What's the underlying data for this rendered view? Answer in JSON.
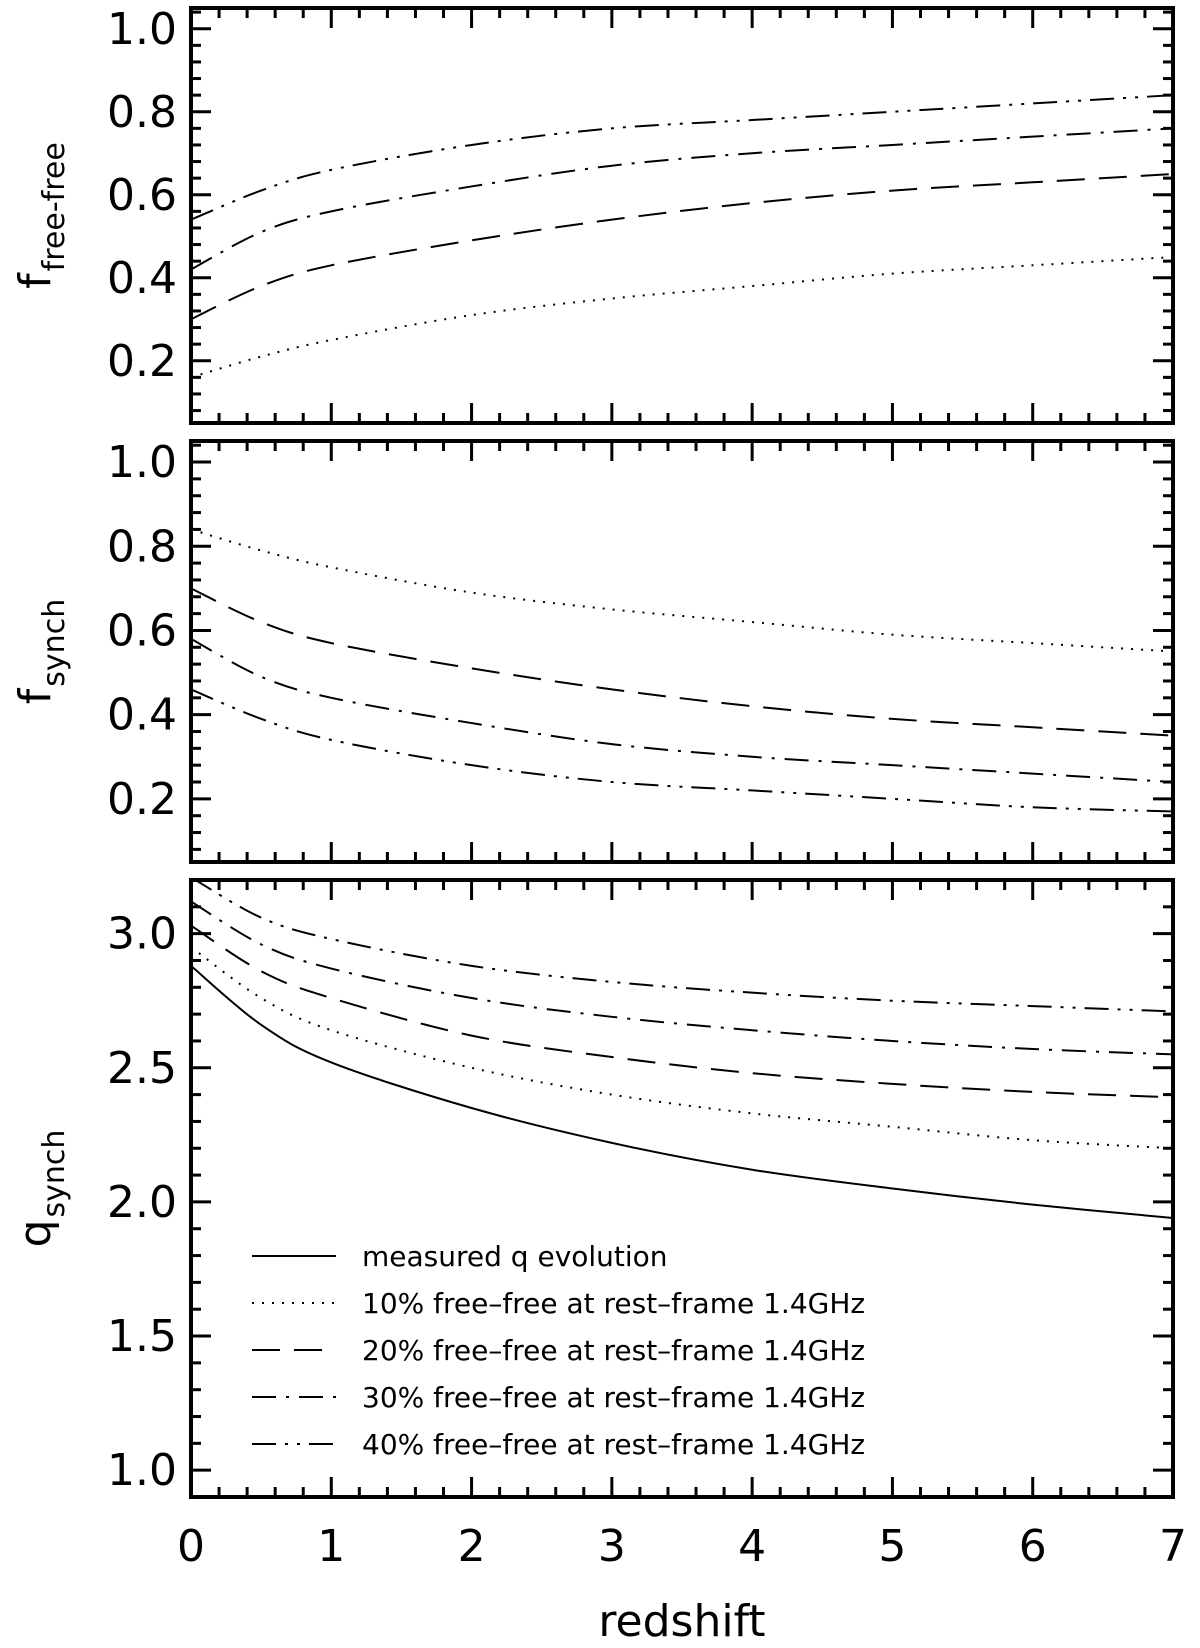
{
  "chart_data": [
    {
      "type": "line",
      "ylabel": "f",
      "ylabel_sub": "free-free",
      "xlabel": "",
      "xlim": [
        0,
        7
      ],
      "ylim": [
        0.05,
        1.05
      ],
      "yticks": [
        "0.2",
        "0.4",
        "0.6",
        "0.8",
        "1.0"
      ],
      "grid": false,
      "series": [
        {
          "style": "dotted",
          "x": [
            0,
            0.5,
            1,
            2,
            3,
            4,
            5,
            6,
            7
          ],
          "values": [
            0.16,
            0.21,
            0.25,
            0.31,
            0.35,
            0.38,
            0.41,
            0.43,
            0.45
          ]
        },
        {
          "style": "dashed",
          "x": [
            0,
            0.5,
            1,
            2,
            3,
            4,
            5,
            6,
            7
          ],
          "values": [
            0.3,
            0.38,
            0.43,
            0.49,
            0.54,
            0.58,
            0.61,
            0.63,
            0.65
          ]
        },
        {
          "style": "dashdot",
          "x": [
            0,
            0.5,
            1,
            2,
            3,
            4,
            5,
            6,
            7
          ],
          "values": [
            0.42,
            0.51,
            0.56,
            0.62,
            0.67,
            0.7,
            0.72,
            0.74,
            0.76
          ]
        },
        {
          "style": "dashdotdot",
          "x": [
            0,
            0.5,
            1,
            2,
            3,
            4,
            5,
            6,
            7
          ],
          "values": [
            0.54,
            0.61,
            0.66,
            0.72,
            0.76,
            0.78,
            0.8,
            0.82,
            0.84
          ]
        }
      ]
    },
    {
      "type": "line",
      "ylabel": "f",
      "ylabel_sub": "synch",
      "xlabel": "",
      "xlim": [
        0,
        7
      ],
      "ylim": [
        0.05,
        1.05
      ],
      "yticks": [
        "0.2",
        "0.4",
        "0.6",
        "0.8",
        "1.0"
      ],
      "grid": false,
      "series": [
        {
          "style": "dotted",
          "x": [
            0,
            0.5,
            1,
            2,
            3,
            4,
            5,
            6,
            7
          ],
          "values": [
            0.84,
            0.79,
            0.75,
            0.69,
            0.65,
            0.62,
            0.59,
            0.57,
            0.55
          ]
        },
        {
          "style": "dashed",
          "x": [
            0,
            0.5,
            1,
            2,
            3,
            4,
            5,
            6,
            7
          ],
          "values": [
            0.7,
            0.62,
            0.57,
            0.51,
            0.46,
            0.42,
            0.39,
            0.37,
            0.35
          ]
        },
        {
          "style": "dashdot",
          "x": [
            0,
            0.5,
            1,
            2,
            3,
            4,
            5,
            6,
            7
          ],
          "values": [
            0.58,
            0.49,
            0.44,
            0.38,
            0.33,
            0.3,
            0.28,
            0.26,
            0.24
          ]
        },
        {
          "style": "dashdotdot",
          "x": [
            0,
            0.5,
            1,
            2,
            3,
            4,
            5,
            6,
            7
          ],
          "values": [
            0.46,
            0.39,
            0.34,
            0.28,
            0.24,
            0.22,
            0.2,
            0.18,
            0.17
          ]
        }
      ]
    },
    {
      "type": "line",
      "ylabel": "q",
      "ylabel_sub": "synch",
      "xlabel": "redshift",
      "xlim": [
        0,
        7
      ],
      "ylim": [
        0.9,
        3.2
      ],
      "xticks": [
        "0",
        "1",
        "2",
        "3",
        "4",
        "5",
        "6",
        "7"
      ],
      "yticks": [
        "1.0",
        "1.5",
        "2.0",
        "2.5",
        "3.0"
      ],
      "grid": false,
      "legend_position": "bottom-left",
      "series": [
        {
          "name": "measured q evolution",
          "style": "solid",
          "x": [
            0,
            0.5,
            1,
            2,
            3,
            4,
            5,
            6,
            7
          ],
          "values": [
            2.88,
            2.66,
            2.52,
            2.35,
            2.22,
            2.12,
            2.05,
            1.99,
            1.94
          ]
        },
        {
          "name": "10% free–free at rest–frame 1.4GHz",
          "style": "dotted",
          "x": [
            0,
            0.5,
            1,
            2,
            3,
            4,
            5,
            6,
            7
          ],
          "values": [
            2.95,
            2.76,
            2.64,
            2.5,
            2.4,
            2.33,
            2.28,
            2.23,
            2.2
          ]
        },
        {
          "name": "20% free–free at rest–frame 1.4GHz",
          "style": "dashed",
          "x": [
            0,
            0.5,
            1,
            2,
            3,
            4,
            5,
            6,
            7
          ],
          "values": [
            3.03,
            2.86,
            2.76,
            2.62,
            2.54,
            2.48,
            2.44,
            2.41,
            2.39
          ]
        },
        {
          "name": "30% free–free at rest–frame 1.4GHz",
          "style": "dashdot",
          "x": [
            0,
            0.5,
            1,
            2,
            3,
            4,
            5,
            6,
            7
          ],
          "values": [
            3.12,
            2.96,
            2.87,
            2.76,
            2.69,
            2.64,
            2.6,
            2.57,
            2.55
          ]
        },
        {
          "name": "40% free–free at rest–frame 1.4GHz",
          "style": "dashdotdot",
          "x": [
            0,
            0.5,
            1,
            2,
            3,
            4,
            5,
            6,
            7
          ],
          "values": [
            3.21,
            3.06,
            2.98,
            2.88,
            2.82,
            2.78,
            2.75,
            2.73,
            2.71
          ]
        }
      ]
    }
  ]
}
